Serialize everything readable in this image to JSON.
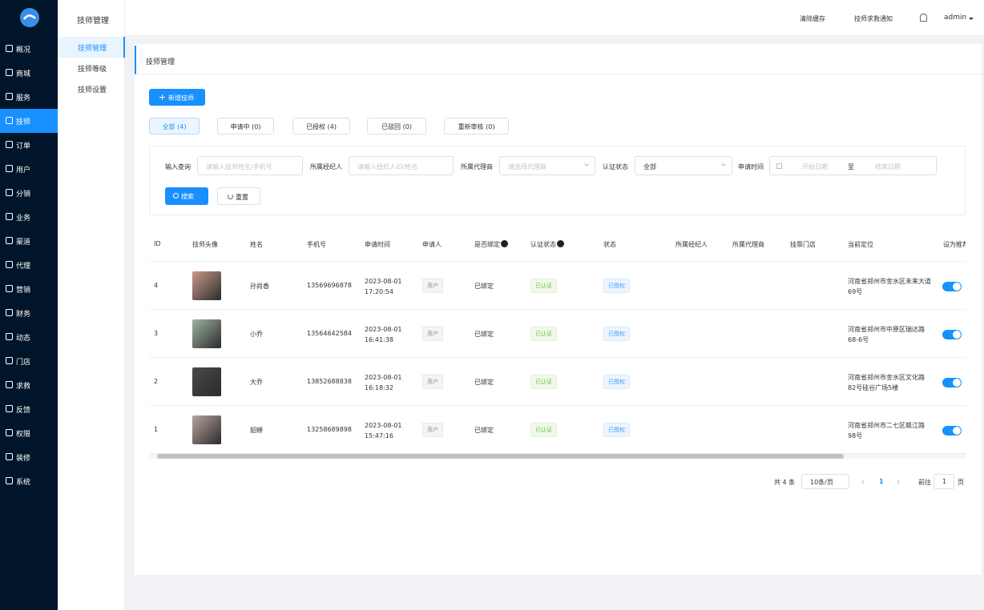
{
  "sidebar": {
    "menu": [
      "概况",
      "商城",
      "服务",
      "技师",
      "订单",
      "用户",
      "分销",
      "业务",
      "渠道",
      "代理",
      "营销",
      "财务",
      "动态",
      "门店",
      "求救",
      "反馈",
      "权限",
      "装修",
      "系统"
    ],
    "active": 3
  },
  "submenu": {
    "title": "技师管理",
    "items": [
      "技师管理",
      "技师等级",
      "技师设置"
    ],
    "active": 0
  },
  "header": {
    "clear_cache": "清除缓存",
    "sos_notice": "技师求救通知",
    "user": "admin"
  },
  "page_tab": "技师管理",
  "add_button": "新增技师",
  "status_tabs": [
    "全部 (4)",
    "申请中 (0)",
    "已授权 (4)",
    "已驳回 (0)",
    "重新审核 (0)"
  ],
  "filters": {
    "query_label": "输入查询",
    "query_placeholder": "请输入技师姓名/手机号",
    "agent_label": "所属经纪人",
    "agent_placeholder": "请输入经纪人ID/姓名",
    "dealer_label": "所属代理商",
    "dealer_placeholder": "请选择代理商",
    "cert_label": "认证状态",
    "cert_value": "全部",
    "date_label": "申请时间",
    "date_start": "开始日期",
    "date_sep": "至",
    "date_end": "结束日期",
    "search": "搜索",
    "reset": "重置"
  },
  "table": {
    "columns": [
      "ID",
      "技师头像",
      "姓名",
      "手机号",
      "申请时间",
      "申请人",
      "是否绑定",
      "认证状态",
      "状态",
      "所属经纪人",
      "所属代理商",
      "挂靠门店",
      "当前定位",
      "设为推荐"
    ],
    "rows": [
      {
        "id": "4",
        "name": "孙尚香",
        "phone": "13569696878",
        "time": "2023-08-01 17:20:54",
        "applicant": "用户",
        "bound": "已绑定",
        "cert": "已认证",
        "status": "已授权",
        "location": "河南省郑州市金水区未来大道69号"
      },
      {
        "id": "3",
        "name": "小乔",
        "phone": "13564642584",
        "time": "2023-08-01 16:41:38",
        "applicant": "用户",
        "bound": "已绑定",
        "cert": "已认证",
        "status": "已授权",
        "location": "河南省郑州市中原区瑞达路68-6号"
      },
      {
        "id": "2",
        "name": "大乔",
        "phone": "13852688838",
        "time": "2023-08-01 16:18:32",
        "applicant": "用户",
        "bound": "已绑定",
        "cert": "已认证",
        "status": "已授权",
        "location": "河南省郑州市金水区文化路82号硅谷广场5楼"
      },
      {
        "id": "1",
        "name": "貂蝉",
        "phone": "13258689898",
        "time": "2023-08-01 15:47:16",
        "applicant": "用户",
        "bound": "已绑定",
        "cert": "已认证",
        "status": "已授权",
        "location": "河南省郑州市二七区赣江路98号"
      }
    ]
  },
  "pagination": {
    "total": "共 4 条",
    "page_size": "10条/页",
    "current": "1",
    "goto": "前往",
    "goto_value": "1",
    "page_unit": "页"
  }
}
